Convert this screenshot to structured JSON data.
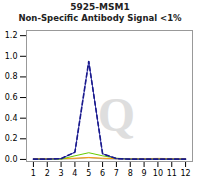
{
  "chart_data": {
    "type": "line",
    "title": "5925-MSM1",
    "subtitle": "Non-Specific Antibody Signal <1%",
    "x": [
      1,
      2,
      3,
      4,
      5,
      6,
      7,
      8,
      9,
      10,
      11,
      12
    ],
    "series": [
      {
        "color": "#d0d0d0",
        "line_style": "solid",
        "values": [
          0.003,
          0.003,
          0.003,
          0.006,
          0.015,
          0.006,
          0.003,
          0.003,
          0.003,
          0.003,
          0.003,
          0.003
        ]
      },
      {
        "color": "#b0b0b0",
        "line_style": "solid",
        "values": [
          0.003,
          0.003,
          0.003,
          0.008,
          0.02,
          0.008,
          0.003,
          0.003,
          0.003,
          0.003,
          0.003,
          0.003
        ]
      },
      {
        "color": "#ff9900",
        "line_style": "solid",
        "values": [
          0.008,
          0.008,
          0.008,
          0.012,
          0.018,
          0.012,
          0.008,
          0.008,
          0.008,
          0.01,
          0.008,
          0.008
        ]
      },
      {
        "color": "#66cc00",
        "line_style": "solid",
        "values": [
          0.002,
          0.002,
          0.003,
          0.035,
          0.065,
          0.035,
          0.012,
          0.003,
          0.002,
          0.002,
          0.002,
          0.002
        ]
      },
      {
        "color": "#3333aa",
        "line_style": "solid",
        "values": [
          0.003,
          0.003,
          0.008,
          0.07,
          0.95,
          0.055,
          0.008,
          0.003,
          0.003,
          0.003,
          0.003,
          0.003
        ]
      },
      {
        "color": "#1a1a8c",
        "line_style": "dashed",
        "values": [
          0.003,
          0.003,
          0.008,
          0.07,
          0.95,
          0.055,
          0.008,
          0.003,
          0.003,
          0.003,
          0.003,
          0.003
        ]
      }
    ],
    "annotations": [
      {
        "text": "Q",
        "x": 7.0,
        "y": 0.42,
        "color": "#dedede"
      }
    ],
    "xlim": [
      0.5,
      12.5
    ],
    "xticks": [
      1,
      2,
      3,
      4,
      5,
      6,
      7,
      8,
      9,
      10,
      11,
      12
    ],
    "ylim": [
      -0.02,
      1.25
    ],
    "yticks": [
      {
        "value": 0,
        "label": "0.0"
      },
      0.2,
      0.4,
      0.6,
      0.8,
      {
        "value": 1.0,
        "label": "1.0"
      },
      1.2
    ],
    "grid": false
  }
}
